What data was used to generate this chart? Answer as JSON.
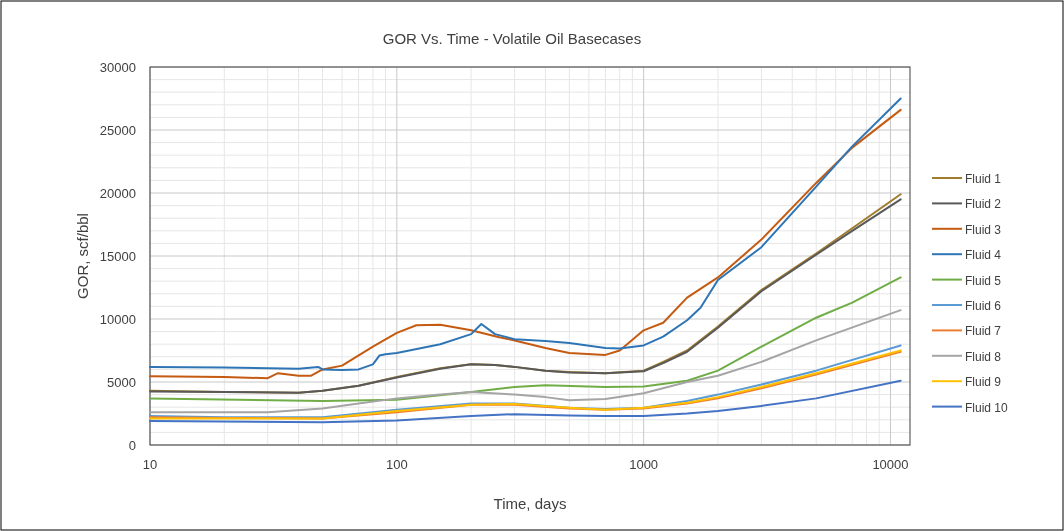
{
  "chart_data": {
    "type": "line",
    "title": "GOR Vs. Time - Volatile Oil Basecases",
    "xlabel": "Time, days",
    "ylabel": "GOR, scf/bbl",
    "log": "x",
    "xlim": [
      10,
      12000
    ],
    "xticks": [
      10,
      100,
      1000,
      10000
    ],
    "ylim": [
      0,
      30000
    ],
    "yticks": [
      0,
      5000,
      10000,
      15000,
      20000,
      25000,
      30000
    ],
    "grid": true,
    "legend": "right",
    "line_style": "solid",
    "marker": "none",
    "series": [
      {
        "name": "Fluid 1",
        "color": "#a07c2c",
        "x": [
          10,
          20,
          40,
          50,
          70,
          100,
          150,
          200,
          250,
          300,
          400,
          500,
          700,
          1000,
          1200,
          1500,
          2000,
          3000,
          5000,
          7000,
          11000
        ],
        "values": [
          4300,
          4200,
          4150,
          4300,
          4700,
          5400,
          6100,
          6400,
          6350,
          6200,
          5900,
          5800,
          5700,
          5900,
          6600,
          7500,
          9400,
          12300,
          15200,
          17200,
          19900
        ]
      },
      {
        "name": "Fluid 2",
        "color": "#595959",
        "x": [
          10,
          20,
          40,
          50,
          70,
          100,
          150,
          200,
          250,
          300,
          400,
          500,
          700,
          1000,
          1200,
          1500,
          2000,
          3000,
          5000,
          7000,
          11000
        ],
        "values": [
          4250,
          4200,
          4150,
          4300,
          4700,
          5350,
          6050,
          6400,
          6350,
          6200,
          5900,
          5750,
          5700,
          5850,
          6500,
          7400,
          9300,
          12200,
          15100,
          17000,
          19500
        ]
      },
      {
        "name": "Fluid 3",
        "color": "#c55a11",
        "x": [
          10,
          20,
          30,
          33,
          40,
          45,
          50,
          60,
          80,
          100,
          120,
          150,
          200,
          260,
          300,
          400,
          500,
          700,
          800,
          1000,
          1200,
          1500,
          2000,
          3000,
          5000,
          7000,
          11000
        ],
        "values": [
          5450,
          5400,
          5300,
          5700,
          5500,
          5500,
          6000,
          6300,
          7800,
          8900,
          9500,
          9550,
          9100,
          8550,
          8300,
          7700,
          7300,
          7150,
          7500,
          9100,
          9700,
          11700,
          13300,
          16300,
          20800,
          23600,
          26600
        ]
      },
      {
        "name": "Fluid 4",
        "color": "#2e75b6",
        "x": [
          10,
          20,
          40,
          48,
          50,
          60,
          70,
          80,
          85,
          90,
          100,
          150,
          200,
          220,
          250,
          300,
          400,
          500,
          700,
          800,
          1000,
          1200,
          1500,
          1700,
          2000,
          3000,
          5000,
          7000,
          11000
        ],
        "values": [
          6200,
          6150,
          6050,
          6200,
          6000,
          5950,
          6000,
          6400,
          7100,
          7200,
          7300,
          8000,
          8800,
          9600,
          8800,
          8400,
          8250,
          8100,
          7700,
          7650,
          7900,
          8600,
          9900,
          10900,
          13100,
          15700,
          20500,
          23700,
          27500
        ]
      },
      {
        "name": "Fluid 5",
        "color": "#70ad47",
        "x": [
          10,
          50,
          100,
          200,
          300,
          400,
          700,
          1000,
          1500,
          2000,
          3000,
          5000,
          7000,
          11000
        ],
        "values": [
          3700,
          3500,
          3600,
          4200,
          4600,
          4750,
          4600,
          4650,
          5100,
          5900,
          7800,
          10100,
          11300,
          13300
        ]
      },
      {
        "name": "Fluid 6",
        "color": "#5b9bd5",
        "x": [
          10,
          20,
          50,
          100,
          200,
          300,
          500,
          700,
          1000,
          1500,
          2000,
          3000,
          5000,
          11000
        ],
        "values": [
          2300,
          2200,
          2200,
          2800,
          3300,
          3300,
          2950,
          2850,
          2950,
          3500,
          4000,
          4800,
          5900,
          7900
        ]
      },
      {
        "name": "Fluid 7",
        "color": "#ed7d31",
        "x": [
          10,
          20,
          50,
          100,
          200,
          300,
          500,
          700,
          1000,
          1500,
          2000,
          3000,
          5000,
          11000
        ],
        "values": [
          2200,
          2150,
          2100,
          2600,
          3200,
          3200,
          2900,
          2800,
          2900,
          3300,
          3700,
          4500,
          5600,
          7400
        ]
      },
      {
        "name": "Fluid 8",
        "color": "#a5a5a5",
        "x": [
          10,
          30,
          50,
          70,
          100,
          150,
          200,
          300,
          400,
          500,
          700,
          1000,
          1500,
          2000,
          3000,
          5000,
          11000
        ],
        "values": [
          2600,
          2600,
          2900,
          3300,
          3700,
          4000,
          4200,
          4000,
          3800,
          3550,
          3650,
          4100,
          5000,
          5500,
          6600,
          8300,
          10700
        ]
      },
      {
        "name": "Fluid 9",
        "color": "#ffc000",
        "x": [
          10,
          20,
          50,
          100,
          200,
          300,
          500,
          700,
          1000,
          1500,
          2000,
          3000,
          5000,
          11000
        ],
        "values": [
          2100,
          2100,
          2100,
          2700,
          3200,
          3250,
          2950,
          2800,
          2950,
          3350,
          3800,
          4600,
          5700,
          7500
        ]
      },
      {
        "name": "Fluid 10",
        "color": "#4472c4",
        "x": [
          10,
          50,
          100,
          200,
          300,
          500,
          700,
          1000,
          1500,
          2000,
          3000,
          5000,
          11000
        ],
        "values": [
          1900,
          1800,
          1950,
          2300,
          2450,
          2350,
          2300,
          2300,
          2500,
          2700,
          3100,
          3700,
          5100
        ]
      }
    ]
  }
}
